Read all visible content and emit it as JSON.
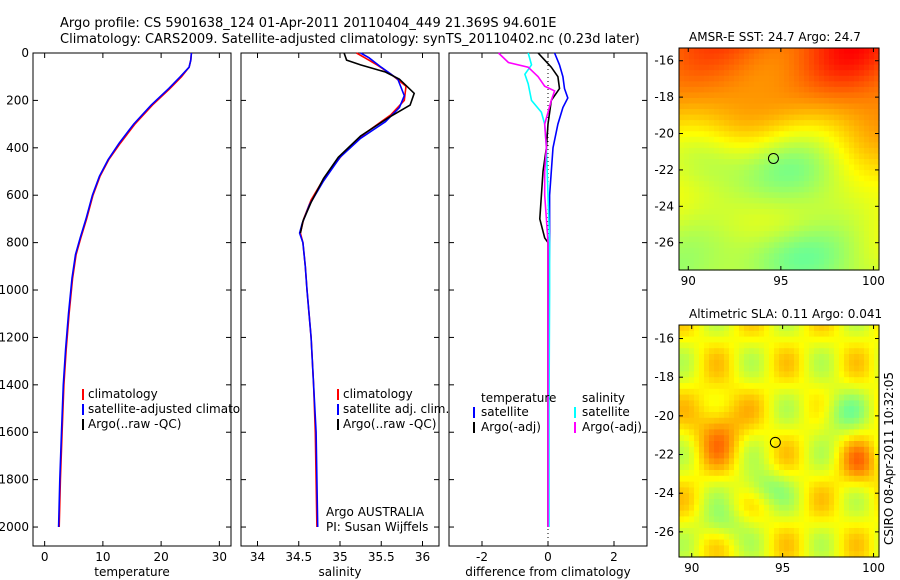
{
  "header": {
    "line1": "Argo profile: CS 5901638_124 01-Apr-2011 20110404_449 21.369S 94.601E",
    "line2": "Climatology: CARS2009. Satellite-adjusted climatology: synTS_20110402.nc (0.23d later)"
  },
  "side_stamp": "CSIRO 08-Apr-2011 10:32:05",
  "colors": {
    "red": "#ff0000",
    "blue": "#0000ff",
    "black": "#000000",
    "cyan": "#00ffff",
    "magenta": "#ff00ff"
  },
  "chart_data": [
    {
      "id": "temperature",
      "type": "line",
      "xlabel": "temperature",
      "ylabel": "",
      "xlim": [
        -2,
        32
      ],
      "ylim": [
        0,
        2080
      ],
      "y_inverted": true,
      "xticks": [
        0,
        10,
        20,
        30
      ],
      "yticks": [
        0,
        200,
        400,
        600,
        800,
        1000,
        1200,
        1400,
        1600,
        1800,
        2000
      ],
      "legend": [
        "climatology",
        "satellite-adjusted climatology",
        "Argo(..raw -QC)"
      ],
      "series": [
        {
          "name": "climatology",
          "color": "red",
          "points": [
            [
              25.2,
              0
            ],
            [
              25.1,
              30
            ],
            [
              24.8,
              60
            ],
            [
              23.5,
              100
            ],
            [
              21.5,
              150
            ],
            [
              18.5,
              220
            ],
            [
              15.5,
              300
            ],
            [
              13,
              380
            ],
            [
              11,
              450
            ],
            [
              9.5,
              520
            ],
            [
              8.3,
              600
            ],
            [
              7.2,
              700
            ],
            [
              6.2,
              780
            ],
            [
              5.4,
              850
            ],
            [
              4.8,
              950
            ],
            [
              4.2,
              1100
            ],
            [
              3.7,
              1250
            ],
            [
              3.3,
              1400
            ],
            [
              3,
              1600
            ],
            [
              2.7,
              1800
            ],
            [
              2.5,
              2000
            ]
          ]
        },
        {
          "name": "satellite-adjusted climatology",
          "color": "blue",
          "points": [
            [
              25.2,
              0
            ],
            [
              25.1,
              30
            ],
            [
              24.8,
              60
            ],
            [
              23.3,
              100
            ],
            [
              21.3,
              150
            ],
            [
              18.3,
              220
            ],
            [
              15.3,
              300
            ],
            [
              12.8,
              380
            ],
            [
              10.9,
              450
            ],
            [
              9.4,
              520
            ],
            [
              8.2,
              600
            ],
            [
              7.1,
              700
            ],
            [
              6.1,
              780
            ],
            [
              5.3,
              850
            ],
            [
              4.7,
              950
            ],
            [
              4.1,
              1100
            ],
            [
              3.6,
              1250
            ],
            [
              3.2,
              1400
            ],
            [
              2.9,
              1600
            ],
            [
              2.6,
              1800
            ],
            [
              2.4,
              2000
            ]
          ]
        }
      ]
    },
    {
      "id": "salinity",
      "type": "line",
      "xlabel": "salinity",
      "ylabel": "",
      "xlim": [
        33.8,
        36.2
      ],
      "ylim": [
        0,
        2080
      ],
      "y_inverted": true,
      "xticks": [
        34,
        34.5,
        35,
        35.5,
        36
      ],
      "yticks": [
        0,
        200,
        400,
        600,
        800,
        1000,
        1200,
        1400,
        1600,
        1800,
        2000
      ],
      "legend": [
        "climatology",
        "satellite adj. clim.",
        "Argo(..raw -QC)"
      ],
      "annotation": [
        "Argo AUSTRALIA",
        "PI: Susan Wijffels"
      ],
      "series": [
        {
          "name": "climatology",
          "color": "red",
          "points": [
            [
              35.2,
              0
            ],
            [
              35.3,
              20
            ],
            [
              35.45,
              50
            ],
            [
              35.62,
              90
            ],
            [
              35.8,
              140
            ],
            [
              35.78,
              200
            ],
            [
              35.62,
              260
            ],
            [
              35.3,
              340
            ],
            [
              35.05,
              420
            ],
            [
              34.82,
              520
            ],
            [
              34.65,
              620
            ],
            [
              34.56,
              700
            ],
            [
              34.52,
              760
            ],
            [
              34.55,
              800
            ],
            [
              34.58,
              900
            ],
            [
              34.6,
              1000
            ],
            [
              34.65,
              1200
            ],
            [
              34.68,
              1400
            ],
            [
              34.7,
              1600
            ],
            [
              34.71,
              1800
            ],
            [
              34.72,
              2000
            ]
          ]
        },
        {
          "name": "satellite adj. clim.",
          "color": "blue",
          "points": [
            [
              35.25,
              0
            ],
            [
              35.35,
              20
            ],
            [
              35.5,
              60
            ],
            [
              35.7,
              110
            ],
            [
              35.78,
              180
            ],
            [
              35.72,
              230
            ],
            [
              35.55,
              290
            ],
            [
              35.25,
              360
            ],
            [
              35,
              440
            ],
            [
              34.8,
              540
            ],
            [
              34.63,
              640
            ],
            [
              34.54,
              720
            ],
            [
              34.51,
              760
            ],
            [
              34.55,
              800
            ],
            [
              34.58,
              900
            ],
            [
              34.6,
              1000
            ],
            [
              34.65,
              1200
            ],
            [
              34.68,
              1400
            ],
            [
              34.71,
              1600
            ],
            [
              34.72,
              1800
            ],
            [
              34.73,
              2000
            ]
          ]
        },
        {
          "name": "Argo(..raw -QC)",
          "color": "black",
          "points": [
            [
              35.05,
              0
            ],
            [
              35.08,
              30
            ],
            [
              35.25,
              50
            ],
            [
              35.55,
              80
            ],
            [
              35.72,
              110
            ],
            [
              35.9,
              170
            ],
            [
              35.85,
              220
            ],
            [
              35.6,
              270
            ],
            [
              35.25,
              350
            ],
            [
              34.98,
              440
            ],
            [
              34.8,
              530
            ],
            [
              34.65,
              630
            ],
            [
              34.55,
              710
            ],
            [
              34.52,
              760
            ]
          ]
        }
      ]
    },
    {
      "id": "difference",
      "type": "line",
      "xlabel": "difference from climatology",
      "ylabel": "",
      "xlim": [
        -3,
        3
      ],
      "ylim": [
        0,
        2080
      ],
      "y_inverted": true,
      "xticks": [
        -2,
        0,
        2
      ],
      "yticks": [
        0,
        200,
        400,
        600,
        800,
        1000,
        1200,
        1400,
        1600,
        1800,
        2000
      ],
      "legend_temperature": {
        "heading": "temperature",
        "items": [
          "satellite",
          "Argo(-adj)"
        ]
      },
      "legend_salinity": {
        "heading": "salinity",
        "items": [
          "satellite",
          "Argo(-adj)"
        ]
      },
      "series": [
        {
          "name": "temperature satellite",
          "color": "blue",
          "points": [
            [
              0.2,
              0
            ],
            [
              0.35,
              50
            ],
            [
              0.45,
              100
            ],
            [
              0.5,
              150
            ],
            [
              0.6,
              190
            ],
            [
              0.45,
              230
            ],
            [
              0.3,
              300
            ],
            [
              0.15,
              400
            ],
            [
              0.1,
              500
            ],
            [
              0.05,
              600
            ],
            [
              0.05,
              800
            ],
            [
              0.02,
              1000
            ],
            [
              0.01,
              1500
            ],
            [
              0.01,
              2000
            ]
          ]
        },
        {
          "name": "temperature Argo(-adj)",
          "color": "black",
          "points": [
            [
              -0.3,
              0
            ],
            [
              -0.1,
              30
            ],
            [
              0.1,
              60
            ],
            [
              0.3,
              100
            ],
            [
              0.35,
              150
            ],
            [
              0.1,
              200
            ],
            [
              0,
              300
            ],
            [
              -0.05,
              400
            ],
            [
              -0.15,
              500
            ],
            [
              -0.2,
              600
            ],
            [
              -0.25,
              700
            ],
            [
              -0.1,
              780
            ],
            [
              0,
              800
            ],
            [
              0,
              1000
            ],
            [
              0,
              1500
            ],
            [
              0,
              2000
            ]
          ]
        },
        {
          "name": "salinity satellite",
          "color": "cyan",
          "points": [
            [
              -0.6,
              0
            ],
            [
              -0.5,
              50
            ],
            [
              -0.7,
              90
            ],
            [
              -0.6,
              130
            ],
            [
              -0.5,
              200
            ],
            [
              -0.2,
              250
            ],
            [
              -0.1,
              300
            ],
            [
              -0.05,
              400
            ],
            [
              0,
              600
            ],
            [
              0.05,
              800
            ],
            [
              0.05,
              1000
            ],
            [
              0.03,
              1500
            ],
            [
              0.03,
              2000
            ]
          ]
        },
        {
          "name": "salinity Argo(-adj)",
          "color": "magenta",
          "points": [
            [
              -1.5,
              0
            ],
            [
              -1.2,
              40
            ],
            [
              -0.6,
              60
            ],
            [
              -0.3,
              100
            ],
            [
              -0.1,
              140
            ],
            [
              0.2,
              160
            ],
            [
              0.1,
              200
            ],
            [
              0,
              250
            ],
            [
              -0.1,
              300
            ],
            [
              -0.05,
              400
            ],
            [
              -0.1,
              500
            ],
            [
              -0.1,
              600
            ],
            [
              -0.05,
              700
            ],
            [
              0,
              800
            ],
            [
              0,
              1000
            ],
            [
              0,
              1500
            ],
            [
              0,
              2000
            ]
          ]
        }
      ]
    },
    {
      "id": "sst_map",
      "type": "heatmap",
      "title": "AMSR-E SST: 24.7 Argo: 24.7",
      "xlim": [
        89.5,
        100.3
      ],
      "ylim": [
        -27.5,
        -15.3
      ],
      "xticks": [
        90,
        95,
        100
      ],
      "yticks": [
        -16,
        -18,
        -20,
        -22,
        -24,
        -26
      ],
      "marker": {
        "lon": 94.6,
        "lat": -21.37
      }
    },
    {
      "id": "sla_map",
      "type": "heatmap",
      "title": "Altimetric SLA: 0.11 Argo: 0.041",
      "xlim": [
        89.3,
        100.3
      ],
      "ylim": [
        -27.3,
        -15.3
      ],
      "xticks": [
        90,
        95,
        100
      ],
      "yticks": [
        -16,
        -18,
        -20,
        -22,
        -24,
        -26
      ],
      "marker": {
        "lon": 94.6,
        "lat": -21.37
      }
    }
  ]
}
